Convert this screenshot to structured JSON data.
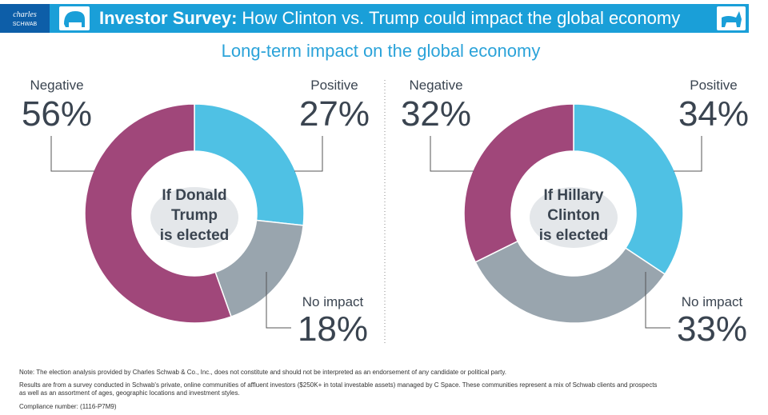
{
  "header": {
    "logo": [
      "charles",
      "SCHWAB"
    ],
    "title_bold": "Investor Survey:",
    "title": "How Clinton vs. Trump could impact the global economy"
  },
  "subtitle": "Long-term impact on the global economy",
  "chart_data": [
    {
      "type": "pie",
      "donut": true,
      "center_label": [
        "If Donald",
        "Trump",
        "is elected"
      ],
      "categories": [
        "Positive",
        "No impact",
        "Negative"
      ],
      "values": [
        27,
        18,
        56
      ],
      "value_labels": [
        "27%",
        "18%",
        "56%"
      ],
      "colors": [
        "#4fc1e4",
        "#99a5ae",
        "#a0477a"
      ]
    },
    {
      "type": "pie",
      "donut": true,
      "center_label": [
        "If Hillary",
        "Clinton",
        "is elected"
      ],
      "categories": [
        "Positive",
        "No impact",
        "Negative"
      ],
      "values": [
        34,
        33,
        32
      ],
      "value_labels": [
        "34%",
        "33%",
        "32%"
      ],
      "colors": [
        "#4fc1e4",
        "#99a5ae",
        "#a0477a"
      ]
    }
  ],
  "notes": [
    "Note: The election analysis provided by Charles Schwab & Co., Inc., does not constitute and should not be interpreted as an endorsement of any candidate or political party.",
    "Results are from a survey conducted in Schwab's private, online communities of affluent investors ($250K+ in total investable assets) managed by C Space. These communities represent a mix of Schwab clients and prospects",
    "as well as an assortment of ages, geographic locations and investment styles.",
    "Compliance number: (1116-P7M9)"
  ]
}
